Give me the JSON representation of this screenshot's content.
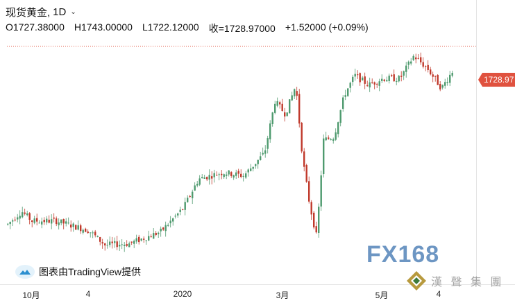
{
  "header": {
    "symbol": "现货黄金,",
    "interval": "1D",
    "open": "O1727.38000",
    "high": "H1743.00000",
    "low": "L1722.12000",
    "close": "收=1728.97000",
    "change": "+1.52000 (+0.09%)"
  },
  "price_tag": "1728.97",
  "credit": "图表由TradingView提供",
  "watermark": {
    "brand": "FX168",
    "group": "漢 聲 集 團"
  },
  "colors": {
    "up": "#4e9a6e",
    "down": "#c0392b",
    "price_tag": "#e0523f",
    "dotted_line": "#e0523f"
  },
  "chart_data": {
    "type": "candlestick",
    "title": "现货黄金, 1D",
    "x_tick_labels": [
      "10月",
      "4",
      "2020",
      "3月",
      "5月",
      "4"
    ],
    "last_price": 1728.97,
    "ylim": [
      1440,
      1785
    ],
    "price_scale_visible": false,
    "grid": false,
    "approx_close_path": [
      {
        "label": "10月",
        "value": 1495
      },
      {
        "label": "4",
        "value": 1465
      },
      {
        "label": "2020",
        "value": 1550
      },
      {
        "label": "3月",
        "value": 1640
      },
      {
        "label": "5月",
        "value": 1715
      },
      {
        "label": "4",
        "value": 1728.97
      }
    ]
  }
}
